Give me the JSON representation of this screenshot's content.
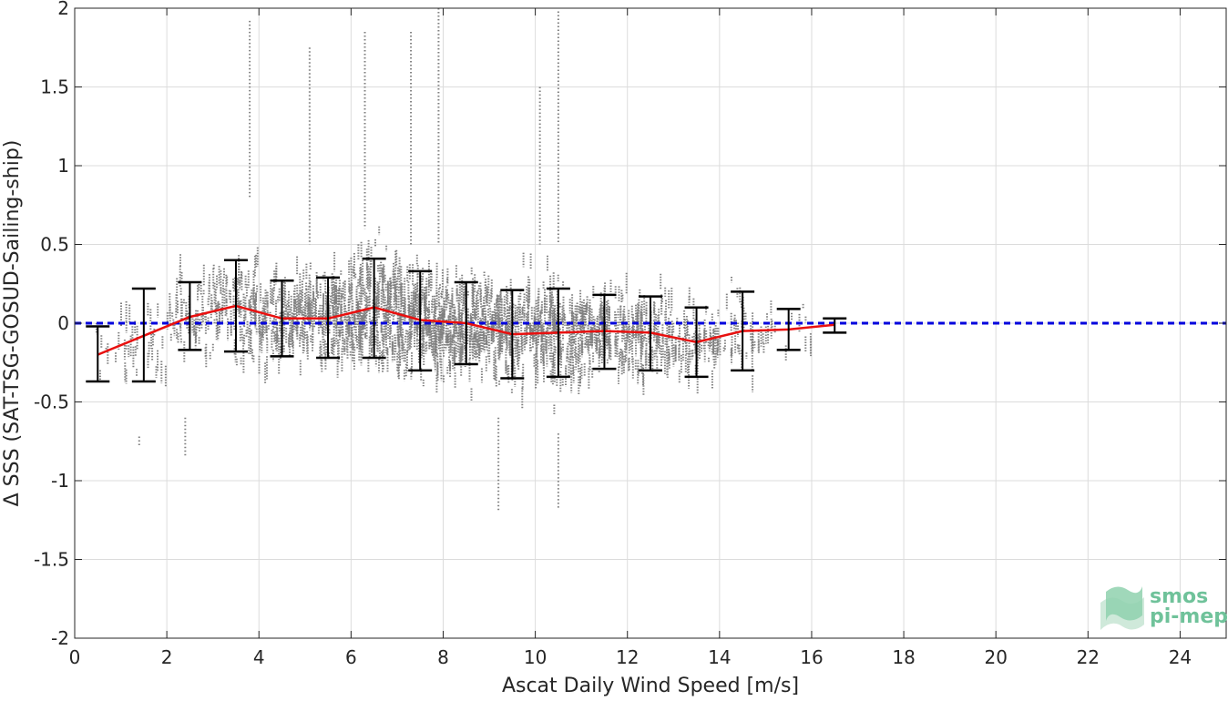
{
  "chart_data": {
    "type": "scatter",
    "title": "",
    "xlabel": "Ascat Daily Wind Speed [m/s]",
    "ylabel": "Δ SSS (SAT-TSG-GOSUD-Sailing-ship)",
    "xlim": [
      0,
      25
    ],
    "ylim": [
      -2,
      2
    ],
    "x_ticks": [
      0,
      2,
      4,
      6,
      8,
      10,
      12,
      14,
      16,
      18,
      20,
      22,
      24
    ],
    "y_ticks": [
      -2,
      -1.5,
      -1,
      -0.5,
      0,
      0.5,
      1,
      1.5,
      2
    ],
    "x_tick_labels": [
      "0",
      "2",
      "4",
      "6",
      "8",
      "10",
      "12",
      "14",
      "16",
      "18",
      "20",
      "22",
      "24"
    ],
    "y_tick_labels": [
      "-2",
      "-1.5",
      "-1",
      "-0.5",
      "0",
      "0.5",
      "1",
      "1.5",
      "2"
    ],
    "grid": true,
    "series": [
      {
        "kind": "mean-line",
        "color": "#e8100f",
        "x": [
          0.5,
          1.5,
          2.5,
          3.5,
          4.5,
          5.5,
          6.5,
          7.5,
          8.5,
          9.5,
          10.5,
          11.5,
          12.5,
          13.5,
          14.5,
          15.5,
          16.5
        ],
        "y": [
          -0.2,
          -0.08,
          0.04,
          0.11,
          0.03,
          0.03,
          0.1,
          0.02,
          0.0,
          -0.07,
          -0.06,
          -0.05,
          -0.06,
          -0.12,
          -0.05,
          -0.04,
          -0.01
        ]
      },
      {
        "kind": "error-bars",
        "color": "#000000",
        "x": [
          0.5,
          1.5,
          2.5,
          3.5,
          4.5,
          5.5,
          6.5,
          7.5,
          8.5,
          9.5,
          10.5,
          11.5,
          12.5,
          13.5,
          14.5,
          15.5,
          16.5
        ],
        "lower": [
          -0.37,
          -0.37,
          -0.17,
          -0.18,
          -0.21,
          -0.22,
          -0.22,
          -0.3,
          -0.26,
          -0.35,
          -0.34,
          -0.29,
          -0.3,
          -0.34,
          -0.3,
          -0.17,
          -0.06
        ],
        "upper": [
          -0.02,
          0.22,
          0.26,
          0.4,
          0.27,
          0.29,
          0.41,
          0.33,
          0.26,
          0.21,
          0.22,
          0.18,
          0.17,
          0.1,
          0.2,
          0.09,
          0.03
        ]
      },
      {
        "kind": "reference-line",
        "color": "#0000dd",
        "y": 0
      },
      {
        "kind": "scatter-cloud",
        "color": "#808080",
        "bins": [
          {
            "x": 0.8,
            "center": -0.2,
            "spread": 0.15,
            "n": 12
          },
          {
            "x": 1.5,
            "center": -0.1,
            "spread": 0.25,
            "n": 25
          },
          {
            "x": 2.5,
            "center": 0.05,
            "spread": 0.25,
            "n": 60
          },
          {
            "x": 3.5,
            "center": 0.1,
            "spread": 0.28,
            "n": 110
          },
          {
            "x": 4.5,
            "center": 0.03,
            "spread": 0.25,
            "n": 140
          },
          {
            "x": 5.5,
            "center": 0.03,
            "spread": 0.27,
            "n": 170
          },
          {
            "x": 6.5,
            "center": 0.1,
            "spread": 0.3,
            "n": 220
          },
          {
            "x": 7.5,
            "center": 0.02,
            "spread": 0.3,
            "n": 230
          },
          {
            "x": 8.5,
            "center": 0.0,
            "spread": 0.27,
            "n": 210
          },
          {
            "x": 9.5,
            "center": -0.07,
            "spread": 0.28,
            "n": 180
          },
          {
            "x": 10.5,
            "center": -0.06,
            "spread": 0.28,
            "n": 170
          },
          {
            "x": 11.5,
            "center": -0.05,
            "spread": 0.24,
            "n": 150
          },
          {
            "x": 12.5,
            "center": -0.06,
            "spread": 0.23,
            "n": 120
          },
          {
            "x": 13.5,
            "center": -0.12,
            "spread": 0.22,
            "n": 80
          },
          {
            "x": 14.5,
            "center": -0.05,
            "spread": 0.25,
            "n": 40
          },
          {
            "x": 15.5,
            "center": -0.04,
            "spread": 0.13,
            "n": 15
          }
        ],
        "outliers": [
          {
            "x": 3.8,
            "y_min": 0.8,
            "y_max": 1.92
          },
          {
            "x": 5.1,
            "y_min": 0.5,
            "y_max": 1.75
          },
          {
            "x": 6.3,
            "y_min": 0.6,
            "y_max": 1.85
          },
          {
            "x": 7.3,
            "y_min": 0.5,
            "y_max": 1.85
          },
          {
            "x": 7.9,
            "y_min": 0.5,
            "y_max": 2.0
          },
          {
            "x": 10.1,
            "y_min": 0.5,
            "y_max": 1.5
          },
          {
            "x": 10.5,
            "y_min": 0.5,
            "y_max": 1.98
          },
          {
            "x": 9.2,
            "y_min": -1.2,
            "y_max": -0.6
          },
          {
            "x": 10.5,
            "y_min": -1.18,
            "y_max": -0.7
          },
          {
            "x": 1.4,
            "y_min": -0.78,
            "y_max": -0.72
          },
          {
            "x": 2.4,
            "y_min": -0.85,
            "y_max": -0.6
          }
        ]
      }
    ]
  },
  "logo": {
    "line1": "smos",
    "line2": "pi-mep",
    "color": "#6fc29a"
  }
}
